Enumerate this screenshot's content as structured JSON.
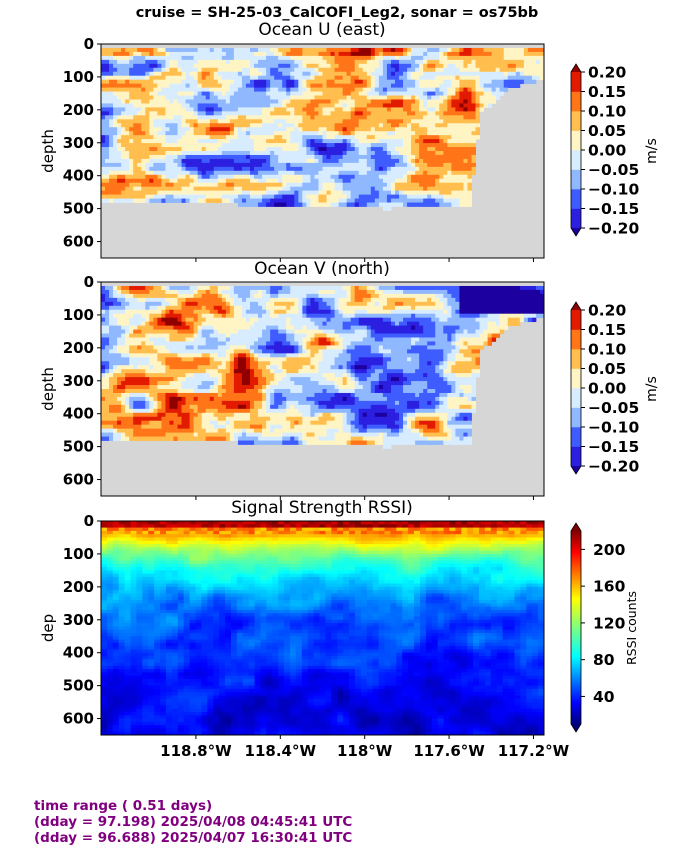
{
  "figure": {
    "suptitle": "cruise = SH-25-03_CalCOFI_Leg2,  sonar = os75bb"
  },
  "footer": {
    "line1": "time range ( 0.51 days)",
    "line2": "(dday = 97.198) 2025/04/08 04:45:41 UTC",
    "line3": "(dday = 96.688) 2025/04/07 16:30:41 UTC"
  },
  "chart_data": [
    {
      "type": "heatmap",
      "title": "Ocean U (east)",
      "ylabel": "depth",
      "xlabel": "",
      "colorbar_label": "m/s",
      "colorbar_ticks": [
        "0.20",
        "0.15",
        "0.10",
        "0.05",
        "0.00",
        "−0.05",
        "−0.10",
        "−0.15",
        "−0.20"
      ],
      "clim": [
        -0.2,
        0.2
      ],
      "yticks": [
        "0",
        "100",
        "200",
        "300",
        "400",
        "500",
        "600"
      ],
      "ylim": [
        650,
        0
      ],
      "xlim": [
        -119.25,
        -117.15
      ],
      "xticks": [
        "118.8°W",
        "118.4°W",
        "118°W",
        "117.6°W",
        "117.2°W"
      ],
      "xtick_values": [
        -118.8,
        -118.4,
        -118.0,
        -117.6,
        -117.2
      ],
      "colormap": "diverging blue-white-red",
      "bottom_depth_profile": {
        "x": [
          -119.25,
          -118.6,
          -118.6,
          -118.0,
          -117.9,
          -117.5,
          -117.45,
          -117.3,
          -117.15
        ],
        "y": [
          480,
          480,
          490,
          495,
          500,
          490,
          210,
          130,
          110
        ]
      }
    },
    {
      "type": "heatmap",
      "title": "Ocean V (north)",
      "ylabel": "depth",
      "xlabel": "",
      "colorbar_label": "m/s",
      "colorbar_ticks": [
        "0.20",
        "0.15",
        "0.10",
        "0.05",
        "0.00",
        "−0.05",
        "−0.10",
        "−0.15",
        "−0.20"
      ],
      "clim": [
        -0.2,
        0.2
      ],
      "yticks": [
        "0",
        "100",
        "200",
        "300",
        "400",
        "500",
        "600"
      ],
      "ylim": [
        650,
        0
      ],
      "xlim": [
        -119.25,
        -117.15
      ],
      "xticks": [
        "118.8°W",
        "118.4°W",
        "118°W",
        "117.6°W",
        "117.2°W"
      ],
      "xtick_values": [
        -118.8,
        -118.4,
        -118.0,
        -117.6,
        -117.2
      ],
      "colormap": "diverging blue-white-red",
      "bottom_depth_profile": {
        "x": [
          -119.25,
          -118.6,
          -118.6,
          -118.0,
          -117.9,
          -117.5,
          -117.45,
          -117.3,
          -117.15
        ],
        "y": [
          480,
          480,
          490,
          495,
          500,
          490,
          210,
          130,
          110
        ]
      }
    },
    {
      "type": "heatmap",
      "title": "Signal Strength RSSI)",
      "ylabel": "dep",
      "xlabel": "",
      "colorbar_label": "RSSI counts",
      "colorbar_ticks": [
        "200",
        "160",
        "120",
        "80",
        "40"
      ],
      "clim": [
        10,
        220
      ],
      "yticks": [
        "0",
        "100",
        "200",
        "300",
        "400",
        "500",
        "600"
      ],
      "ylim": [
        650,
        0
      ],
      "xlim": [
        -119.25,
        -117.15
      ],
      "xticks": [
        "118.8°W",
        "118.4°W",
        "118°W",
        "117.6°W",
        "117.2°W"
      ],
      "xtick_values": [
        -118.8,
        -118.4,
        -118.0,
        -117.6,
        -117.2
      ],
      "colormap": "jet"
    }
  ]
}
